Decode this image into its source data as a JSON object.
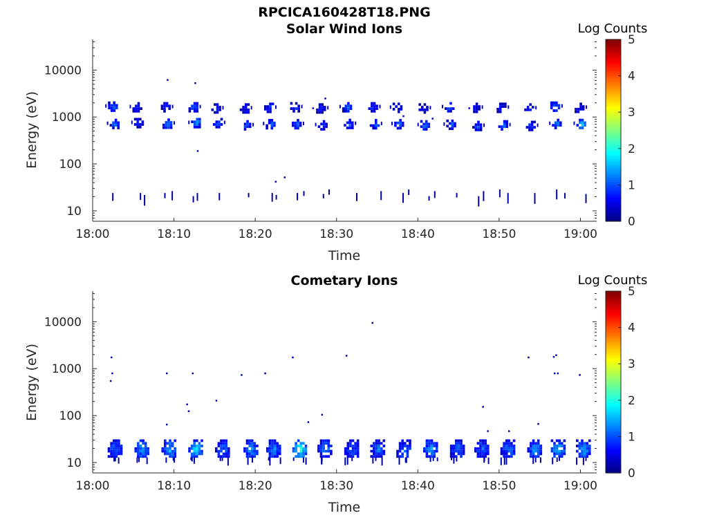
{
  "figure": {
    "title": "RPCICA160428T18.PNG"
  },
  "chart_data": [
    {
      "type": "heatmap",
      "title": "Solar Wind Ions",
      "xlabel": "Time",
      "ylabel": "Energy (eV)",
      "x_ticks": [
        "18:00",
        "18:10",
        "18:20",
        "18:30",
        "18:40",
        "18:50",
        "19:00"
      ],
      "x_range_minutes": [
        0,
        62
      ],
      "y_scale": "log",
      "y_ticks": [
        "10",
        "100",
        "1000",
        "10000"
      ],
      "y_range": [
        6,
        45000
      ],
      "grid": false,
      "colorbar": {
        "label": "Log Counts",
        "ticks": [
          "0",
          "1",
          "2",
          "3",
          "4",
          "5"
        ],
        "range": [
          0,
          5
        ],
        "colormap": "jet"
      },
      "note_units": "x in minutes after 18:00, y in eV, v in log counts",
      "blobs": [
        {
          "x": 2.4,
          "y": 1750,
          "v": 1.0
        },
        {
          "x": 2.6,
          "y": 750,
          "v": 1.0
        },
        {
          "x": 5.4,
          "y": 1700,
          "v": 0.7
        },
        {
          "x": 5.6,
          "y": 780,
          "v": 0.7
        },
        {
          "x": 8.9,
          "y": 1700,
          "v": 0.8
        },
        {
          "x": 9.1,
          "y": 760,
          "v": 1.2
        },
        {
          "x": 12.3,
          "y": 1700,
          "v": 0.9
        },
        {
          "x": 12.6,
          "y": 780,
          "v": 1.4
        },
        {
          "x": 15.1,
          "y": 1600,
          "v": 0.6
        },
        {
          "x": 15.3,
          "y": 780,
          "v": 0.8
        },
        {
          "x": 18.6,
          "y": 1600,
          "v": 0.6
        },
        {
          "x": 18.8,
          "y": 700,
          "v": 1.0
        },
        {
          "x": 21.6,
          "y": 1650,
          "v": 0.8
        },
        {
          "x": 21.8,
          "y": 740,
          "v": 1.0
        },
        {
          "x": 24.8,
          "y": 1700,
          "v": 0.8
        },
        {
          "x": 25.0,
          "y": 740,
          "v": 1.0
        },
        {
          "x": 28.0,
          "y": 1600,
          "v": 0.6
        },
        {
          "x": 28.2,
          "y": 700,
          "v": 1.0
        },
        {
          "x": 31.2,
          "y": 1700,
          "v": 0.9
        },
        {
          "x": 31.4,
          "y": 750,
          "v": 1.0
        },
        {
          "x": 34.4,
          "y": 1700,
          "v": 0.8
        },
        {
          "x": 34.6,
          "y": 740,
          "v": 1.0
        },
        {
          "x": 37.4,
          "y": 1650,
          "v": 0.6
        },
        {
          "x": 37.6,
          "y": 740,
          "v": 1.1
        },
        {
          "x": 40.6,
          "y": 1600,
          "v": 0.6
        },
        {
          "x": 40.8,
          "y": 700,
          "v": 1.0
        },
        {
          "x": 43.8,
          "y": 1700,
          "v": 1.0
        },
        {
          "x": 44.0,
          "y": 720,
          "v": 1.0
        },
        {
          "x": 47.0,
          "y": 1650,
          "v": 0.6
        },
        {
          "x": 47.2,
          "y": 680,
          "v": 0.9
        },
        {
          "x": 50.2,
          "y": 1650,
          "v": 0.6
        },
        {
          "x": 50.4,
          "y": 700,
          "v": 1.0
        },
        {
          "x": 53.6,
          "y": 1600,
          "v": 0.6
        },
        {
          "x": 53.8,
          "y": 680,
          "v": 0.8
        },
        {
          "x": 56.8,
          "y": 1750,
          "v": 1.1
        },
        {
          "x": 57.0,
          "y": 750,
          "v": 1.1
        },
        {
          "x": 59.8,
          "y": 1650,
          "v": 0.6
        },
        {
          "x": 60.0,
          "y": 750,
          "v": 1.6
        }
      ],
      "spikes": [
        {
          "x": 2.4,
          "y": 21,
          "v": 0.2
        },
        {
          "x": 5.8,
          "y": 21,
          "v": 0.2
        },
        {
          "x": 6.3,
          "y": 19,
          "v": 0.2
        },
        {
          "x": 8.8,
          "y": 21,
          "v": 0.2
        },
        {
          "x": 9.7,
          "y": 23,
          "v": 0.2
        },
        {
          "x": 12.3,
          "y": 18,
          "v": 0.2
        },
        {
          "x": 12.8,
          "y": 21,
          "v": 0.2
        },
        {
          "x": 15.5,
          "y": 21,
          "v": 0.2
        },
        {
          "x": 19.1,
          "y": 21,
          "v": 0.2
        },
        {
          "x": 22.0,
          "y": 21,
          "v": 0.2
        },
        {
          "x": 22.5,
          "y": 19,
          "v": 0.2
        },
        {
          "x": 25.1,
          "y": 21,
          "v": 0.2
        },
        {
          "x": 25.9,
          "y": 23,
          "v": 0.2
        },
        {
          "x": 28.3,
          "y": 20,
          "v": 0.2
        },
        {
          "x": 29.0,
          "y": 25,
          "v": 0.2
        },
        {
          "x": 32.4,
          "y": 21,
          "v": 0.2
        },
        {
          "x": 35.4,
          "y": 23,
          "v": 0.2
        },
        {
          "x": 38.1,
          "y": 21,
          "v": 0.2
        },
        {
          "x": 38.8,
          "y": 25,
          "v": 0.2
        },
        {
          "x": 41.3,
          "y": 18,
          "v": 0.2
        },
        {
          "x": 42.0,
          "y": 23,
          "v": 0.2
        },
        {
          "x": 44.7,
          "y": 21,
          "v": 0.2
        },
        {
          "x": 47.4,
          "y": 18,
          "v": 0.2
        },
        {
          "x": 48.0,
          "y": 23,
          "v": 0.2
        },
        {
          "x": 50.0,
          "y": 25,
          "v": 0.2
        },
        {
          "x": 51.0,
          "y": 21,
          "v": 0.2
        },
        {
          "x": 54.3,
          "y": 21,
          "v": 0.2
        },
        {
          "x": 57.0,
          "y": 25,
          "v": 0.2
        },
        {
          "x": 58.0,
          "y": 21,
          "v": 0.2
        },
        {
          "x": 60.6,
          "y": 20,
          "v": 0.2
        }
      ],
      "dots": [
        {
          "x": 9.2,
          "y": 6200,
          "v": 0.2
        },
        {
          "x": 12.6,
          "y": 5300,
          "v": 0.2
        },
        {
          "x": 12.9,
          "y": 190,
          "v": 0.3
        },
        {
          "x": 22.5,
          "y": 42,
          "v": 0.2
        },
        {
          "x": 23.6,
          "y": 52,
          "v": 0.2
        },
        {
          "x": 28.6,
          "y": 2500,
          "v": 0.2
        },
        {
          "x": 38.2,
          "y": 1050,
          "v": 0.3
        },
        {
          "x": 41.8,
          "y": 930,
          "v": 0.3
        },
        {
          "x": 27.1,
          "y": 1550,
          "v": 0.4
        },
        {
          "x": 46.3,
          "y": 1550,
          "v": 0.4
        }
      ]
    },
    {
      "type": "heatmap",
      "title": "Cometary Ions",
      "xlabel": "Time",
      "ylabel": "Energy (eV)",
      "x_ticks": [
        "18:00",
        "18:10",
        "18:20",
        "18:30",
        "18:40",
        "18:50",
        "19:00"
      ],
      "x_range_minutes": [
        0,
        62
      ],
      "y_scale": "log",
      "y_ticks": [
        "10",
        "100",
        "1000",
        "10000"
      ],
      "y_range": [
        6,
        45000
      ],
      "grid": false,
      "colorbar": {
        "label": "Log Counts",
        "ticks": [
          "0",
          "1",
          "2",
          "3",
          "4",
          "5"
        ],
        "range": [
          0,
          5
        ],
        "colormap": "jet"
      },
      "blobs": [
        {
          "x": 2.7,
          "y": 20,
          "v": 1.0
        },
        {
          "x": 6.0,
          "y": 20,
          "v": 1.3
        },
        {
          "x": 9.3,
          "y": 20,
          "v": 1.3
        },
        {
          "x": 12.6,
          "y": 20,
          "v": 1.5
        },
        {
          "x": 15.9,
          "y": 20,
          "v": 1.0
        },
        {
          "x": 19.4,
          "y": 20,
          "v": 1.2
        },
        {
          "x": 22.2,
          "y": 20,
          "v": 1.1
        },
        {
          "x": 25.4,
          "y": 20,
          "v": 1.8
        },
        {
          "x": 28.5,
          "y": 20,
          "v": 1.1
        },
        {
          "x": 31.8,
          "y": 20,
          "v": 0.9
        },
        {
          "x": 35.0,
          "y": 20,
          "v": 1.0
        },
        {
          "x": 38.2,
          "y": 20,
          "v": 1.0
        },
        {
          "x": 41.5,
          "y": 20,
          "v": 1.2
        },
        {
          "x": 44.8,
          "y": 20,
          "v": 1.0
        },
        {
          "x": 47.8,
          "y": 20,
          "v": 1.0
        },
        {
          "x": 51.0,
          "y": 20,
          "v": 1.0
        },
        {
          "x": 54.3,
          "y": 20,
          "v": 1.2
        },
        {
          "x": 57.2,
          "y": 20,
          "v": 1.4
        },
        {
          "x": 60.3,
          "y": 20,
          "v": 1.3
        }
      ],
      "spikes": [],
      "dots": [
        {
          "x": 2.3,
          "y": 1750,
          "v": 0.2
        },
        {
          "x": 2.4,
          "y": 800,
          "v": 0.2
        },
        {
          "x": 2.2,
          "y": 550,
          "v": 0.2
        },
        {
          "x": 9.1,
          "y": 800,
          "v": 0.2
        },
        {
          "x": 9.1,
          "y": 65,
          "v": 0.2
        },
        {
          "x": 11.6,
          "y": 175,
          "v": 0.3
        },
        {
          "x": 11.8,
          "y": 125,
          "v": 0.2
        },
        {
          "x": 12.3,
          "y": 800,
          "v": 0.2
        },
        {
          "x": 15.2,
          "y": 210,
          "v": 0.3
        },
        {
          "x": 18.3,
          "y": 740,
          "v": 0.2
        },
        {
          "x": 21.2,
          "y": 800,
          "v": 0.2
        },
        {
          "x": 24.6,
          "y": 1750,
          "v": 0.3
        },
        {
          "x": 26.5,
          "y": 73,
          "v": 0.2
        },
        {
          "x": 28.2,
          "y": 105,
          "v": 0.2
        },
        {
          "x": 31.2,
          "y": 1900,
          "v": 0.2
        },
        {
          "x": 34.4,
          "y": 9500,
          "v": 0.2
        },
        {
          "x": 48.0,
          "y": 155,
          "v": 0.2
        },
        {
          "x": 48.6,
          "y": 47,
          "v": 0.2
        },
        {
          "x": 51.2,
          "y": 47,
          "v": 0.2
        },
        {
          "x": 53.6,
          "y": 1750,
          "v": 0.2
        },
        {
          "x": 54.8,
          "y": 67,
          "v": 0.2
        },
        {
          "x": 56.7,
          "y": 1800,
          "v": 0.3
        },
        {
          "x": 57.0,
          "y": 1950,
          "v": 0.3
        },
        {
          "x": 56.8,
          "y": 800,
          "v": 0.3
        },
        {
          "x": 57.2,
          "y": 800,
          "v": 0.3
        },
        {
          "x": 59.9,
          "y": 740,
          "v": 0.3
        }
      ]
    }
  ]
}
